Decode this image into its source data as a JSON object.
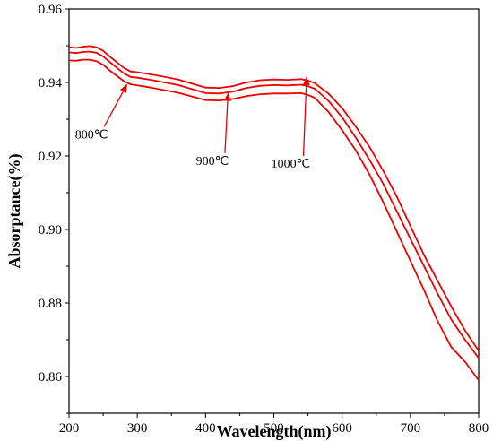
{
  "chart_data": {
    "type": "line",
    "xlabel": "Wavelength(nm)",
    "ylabel": "Absorptance(%)",
    "xlim": [
      200,
      800
    ],
    "ylim": [
      0.85,
      0.96
    ],
    "x_ticks": [
      200,
      300,
      400,
      500,
      600,
      700,
      800
    ],
    "y_ticks": [
      0.86,
      0.88,
      0.9,
      0.92,
      0.94,
      0.96
    ],
    "x_tick_labels": [
      "200",
      "300",
      "400",
      "500",
      "600",
      "700",
      "800"
    ],
    "y_tick_labels": [
      "0.86",
      "0.88",
      "0.90",
      "0.92",
      "0.94",
      "0.96"
    ],
    "grid": false,
    "series_color": "#ee0000",
    "x": [
      200,
      210,
      220,
      230,
      240,
      250,
      260,
      270,
      280,
      290,
      300,
      320,
      340,
      360,
      380,
      400,
      420,
      440,
      460,
      480,
      500,
      520,
      540,
      550,
      560,
      580,
      600,
      620,
      640,
      660,
      680,
      700,
      720,
      740,
      760,
      780,
      800
    ],
    "series": [
      {
        "values": [
          0.9496,
          0.9494,
          0.9497,
          0.9499,
          0.9496,
          0.9486,
          0.947,
          0.9455,
          0.944,
          0.943,
          0.9428,
          0.9422,
          0.9415,
          0.9408,
          0.9397,
          0.9386,
          0.9385,
          0.939,
          0.94,
          0.9406,
          0.9408,
          0.9407,
          0.9409,
          0.9405,
          0.9398,
          0.937,
          0.933,
          0.928,
          0.9225,
          0.916,
          0.909,
          0.901,
          0.893,
          0.886,
          0.879,
          0.8725,
          0.867
        ]
      },
      {
        "values": [
          0.9482,
          0.948,
          0.9483,
          0.9484,
          0.9481,
          0.9471,
          0.9455,
          0.944,
          0.9425,
          0.9415,
          0.9413,
          0.9407,
          0.94,
          0.9393,
          0.9382,
          0.9371,
          0.937,
          0.9375,
          0.9385,
          0.9391,
          0.9393,
          0.9392,
          0.9394,
          0.939,
          0.9383,
          0.935,
          0.9305,
          0.925,
          0.919,
          0.9125,
          0.905,
          0.8975,
          0.89,
          0.8825,
          0.8755,
          0.87,
          0.865
        ]
      },
      {
        "values": [
          0.946,
          0.9459,
          0.9462,
          0.9462,
          0.9458,
          0.9448,
          0.9432,
          0.9418,
          0.9404,
          0.9395,
          0.9392,
          0.9386,
          0.9379,
          0.9372,
          0.9362,
          0.9352,
          0.9351,
          0.9355,
          0.9363,
          0.9368,
          0.937,
          0.937,
          0.9371,
          0.9366,
          0.9358,
          0.932,
          0.927,
          0.9215,
          0.915,
          0.9075,
          0.8995,
          0.8915,
          0.8835,
          0.875,
          0.868,
          0.864,
          0.859
        ]
      }
    ],
    "annotations": [
      {
        "text": "800℃",
        "x": 233,
        "y": 0.9248,
        "arrow_to_x": 285,
        "arrow_to_y": 0.9395
      },
      {
        "text": "900℃",
        "x": 410,
        "y": 0.9176,
        "arrow_to_x": 433,
        "arrow_to_y": 0.9372
      },
      {
        "text": "1000℃",
        "x": 525,
        "y": 0.9168,
        "arrow_to_x": 548,
        "arrow_to_y": 0.9415
      }
    ]
  }
}
